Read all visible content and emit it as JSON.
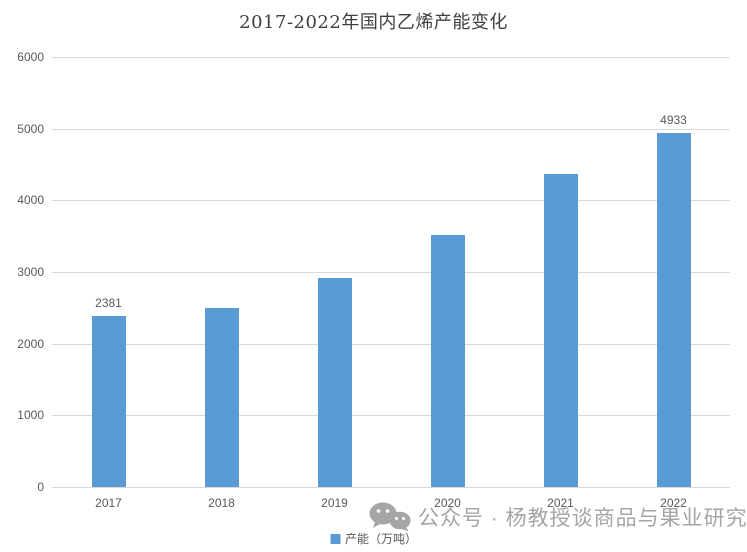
{
  "chart_data": {
    "type": "bar",
    "title": "2017-2022年国内乙烯产能变化",
    "categories": [
      "2017",
      "2018",
      "2019",
      "2020",
      "2021",
      "2022"
    ],
    "series": [
      {
        "name": "产能（万吨）",
        "values": [
          2381,
          2500,
          2910,
          3520,
          4370,
          4933
        ],
        "data_labels": [
          "2381",
          null,
          null,
          null,
          null,
          "4933"
        ],
        "color": "#5B9BD5"
      }
    ],
    "xlabel": "",
    "ylabel": "",
    "ylim": [
      0,
      6000
    ],
    "y_ticks": [
      0,
      1000,
      2000,
      3000,
      4000,
      5000,
      6000
    ],
    "grid": true,
    "gridline_color": "#d9d9d9",
    "axis_text_color": "#595959",
    "legend_position": "bottom-center"
  },
  "legend": {
    "label": "产能（万吨）",
    "swatch_color": "#5B9BD5"
  },
  "watermark": {
    "icon": "wechat-icon",
    "text": "公众号 · 杨教授谈商品与果业研究",
    "color": "#a5a5a5"
  }
}
